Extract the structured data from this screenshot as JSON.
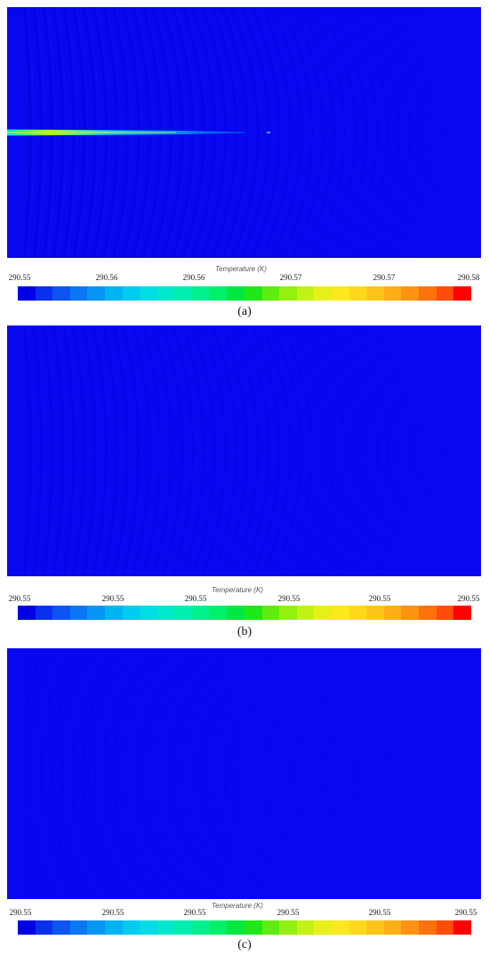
{
  "panels": [
    {
      "caption": "(a)",
      "colorbar": {
        "title": "Temperature (K)",
        "ticks": [
          "290.55",
          "290.56",
          "290.56",
          "290.57",
          "290.57",
          "290.58"
        ]
      },
      "features": {
        "jet": true,
        "wave_strength": 1.0
      }
    },
    {
      "caption": "(b)",
      "colorbar": {
        "title": "Temperature (K)",
        "ticks": [
          "290.55",
          "290.55",
          "290.55",
          "290.55",
          "290.55",
          "290.55"
        ]
      },
      "features": {
        "jet": false,
        "wave_strength": 0.55
      }
    },
    {
      "caption": "(c)",
      "colorbar": {
        "title": "Temperature (K)",
        "ticks": [
          "290.55",
          "290.55",
          "290.55",
          "290.55",
          "290.55",
          "290.55"
        ]
      },
      "features": {
        "jet": false,
        "wave_strength": 0.12
      }
    }
  ],
  "colormap": [
    "#0000e6",
    "#0a30ee",
    "#0c55f2",
    "#0a78f4",
    "#0696f4",
    "#00b4f2",
    "#00ccee",
    "#00dde4",
    "#00e8cc",
    "#00eeb0",
    "#00f090",
    "#00f06a",
    "#00e840",
    "#20e818",
    "#60ec10",
    "#94f010",
    "#c4f214",
    "#e8f01a",
    "#fce81c",
    "#ffd81c",
    "#ffc41a",
    "#ffae16",
    "#ff9212",
    "#ff720e",
    "#ff4c08",
    "#ff0000"
  ],
  "colors": {
    "field_background": "#0707f0"
  }
}
